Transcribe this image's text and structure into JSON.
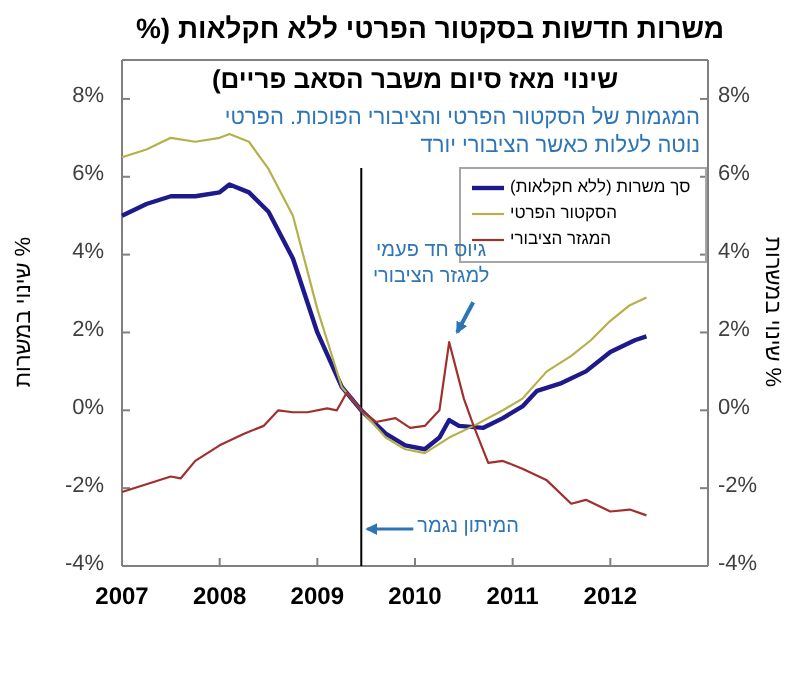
{
  "chart_data": {
    "type": "line",
    "title": "משרות חדשות בסקטור הפרטי ללא חקלאות (%",
    "subtitle": "שינוי מאז סיום משבר הסאב פריים)",
    "ylabel": "% שינוי במשרות",
    "y2label": "% שינוי במשרות",
    "xlim": [
      2007,
      2013
    ],
    "xticks": [
      2007,
      2008,
      2009,
      2010,
      2011,
      2012
    ],
    "ylim": [
      -4,
      9
    ],
    "yticks": [
      {
        "value": -4,
        "label": "-4%"
      },
      {
        "value": -2,
        "label": "-2%"
      },
      {
        "value": 0,
        "label": "0%"
      },
      {
        "value": 2,
        "label": "2%"
      },
      {
        "value": 4,
        "label": "4%"
      },
      {
        "value": 6,
        "label": "6%"
      },
      {
        "value": 8,
        "label": "8%"
      }
    ],
    "y2lim": [
      -4,
      9
    ],
    "y2ticks": [
      {
        "value": -4,
        "label": "-4%"
      },
      {
        "value": -2,
        "label": "-2%"
      },
      {
        "value": 0,
        "label": "0%"
      },
      {
        "value": 2,
        "label": "2%"
      },
      {
        "value": 4,
        "label": "4%"
      },
      {
        "value": 6,
        "label": "6%"
      },
      {
        "value": 8,
        "label": "8%"
      }
    ],
    "legend": "top right",
    "grid": false,
    "marker": "none",
    "line_style": "solid",
    "ref_lines": [
      {
        "axis": "x",
        "value": 2009.45,
        "color": "#000000"
      }
    ],
    "annotations": [
      "המגמות של הסקטור הפרטי והציבורי הפוכות. הפרטי נוטה לעלות כאשר הציבורי יורד",
      "גיוס חד פעמי למגזר הציבורי",
      {
        "text": "המיתון נגמר",
        "x": 2009.45,
        "y": -3.05
      }
    ],
    "series": [
      {
        "name": "סך משרות (ללא חקלאות)",
        "color": "#1f1a8c",
        "x": [
          2007,
          2007.25,
          2007.5,
          2007.75,
          2008,
          2008.1,
          2008.3,
          2008.5,
          2008.75,
          2009,
          2009.25,
          2009.45,
          2009.7,
          2009.9,
          2010.1,
          2010.25,
          2010.35,
          2010.45,
          2010.7,
          2010.9,
          2011.1,
          2011.25,
          2011.5,
          2011.75,
          2012,
          2012.25,
          2012.37
        ],
        "values": [
          5.0,
          5.3,
          5.5,
          5.5,
          5.6,
          5.8,
          5.6,
          5.1,
          3.9,
          2.0,
          0.6,
          0.0,
          -0.6,
          -0.9,
          -1.0,
          -0.7,
          -0.25,
          -0.4,
          -0.45,
          -0.2,
          0.1,
          0.5,
          0.7,
          1.0,
          1.5,
          1.8,
          1.9
        ]
      },
      {
        "name": "הסקטור הפרטי",
        "color": "#b5b04a",
        "x": [
          2007,
          2007.25,
          2007.5,
          2007.75,
          2008,
          2008.1,
          2008.3,
          2008.5,
          2008.75,
          2009,
          2009.25,
          2009.45,
          2009.7,
          2009.9,
          2010.1,
          2010.35,
          2010.6,
          2010.9,
          2011.1,
          2011.35,
          2011.6,
          2011.8,
          2012,
          2012.2,
          2012.37
        ],
        "values": [
          6.5,
          6.7,
          7.0,
          6.9,
          7.0,
          7.1,
          6.9,
          6.2,
          5.0,
          2.6,
          0.6,
          0.0,
          -0.7,
          -1.0,
          -1.1,
          -0.7,
          -0.4,
          0.0,
          0.3,
          1.0,
          1.4,
          1.8,
          2.3,
          2.7,
          2.9
        ]
      },
      {
        "name": "המגזר הציבורי",
        "color": "#a0302e",
        "x": [
          2007,
          2007.25,
          2007.5,
          2007.6,
          2007.75,
          2008,
          2008.25,
          2008.45,
          2008.6,
          2008.75,
          2008.9,
          2009.1,
          2009.2,
          2009.3,
          2009.45,
          2009.6,
          2009.8,
          2009.95,
          2010.1,
          2010.25,
          2010.35,
          2010.5,
          2010.6,
          2010.75,
          2010.9,
          2011.1,
          2011.35,
          2011.6,
          2011.75,
          2012,
          2012.2,
          2012.37
        ],
        "values": [
          -2.1,
          -1.9,
          -1.7,
          -1.75,
          -1.3,
          -0.9,
          -0.6,
          -0.4,
          0.0,
          -0.05,
          -0.05,
          0.05,
          0.0,
          0.45,
          0.0,
          -0.3,
          -0.2,
          -0.45,
          -0.4,
          0.0,
          1.75,
          0.3,
          -0.4,
          -1.35,
          -1.3,
          -1.5,
          -1.8,
          -2.4,
          -2.3,
          -2.6,
          -2.55,
          -2.7
        ]
      }
    ]
  }
}
